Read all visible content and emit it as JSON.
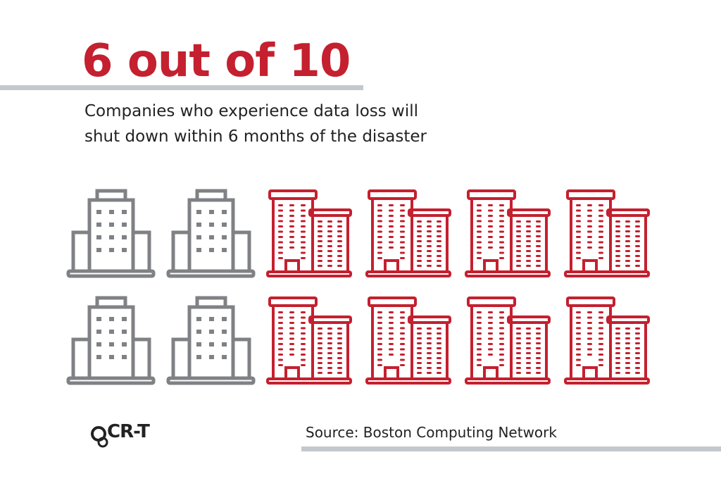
{
  "header": {
    "title": "6 out of 10",
    "subtitle_lines": [
      "Companies who experience data loss will",
      "shut down within 6 months of the disaster"
    ]
  },
  "footer": {
    "logo": "CR-T",
    "source": "Source: Boston Computing Network"
  }
}
